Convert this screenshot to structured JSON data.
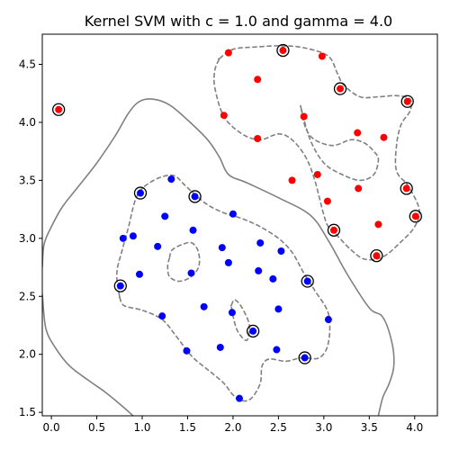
{
  "chart_data": {
    "type": "scatter",
    "title": "Kernel SVM with c = 1.0 and gamma = 4.0",
    "xlim": [
      -0.1,
      4.25
    ],
    "ylim": [
      1.47,
      4.76
    ],
    "xticks": [
      "0.0",
      "0.5",
      "1.0",
      "1.5",
      "2.0",
      "2.5",
      "3.0",
      "3.5",
      "4.0"
    ],
    "yticks": [
      "1.5",
      "2.0",
      "2.5",
      "3.0",
      "3.5",
      "4.0",
      "4.5"
    ],
    "grid": false,
    "series": [
      {
        "color": "#ff0000",
        "points": [
          [
            1.95,
            4.6
          ],
          [
            2.27,
            4.37
          ],
          [
            2.55,
            4.62
          ],
          [
            2.98,
            4.57
          ],
          [
            3.18,
            4.29
          ],
          [
            3.92,
            4.18
          ],
          [
            0.08,
            4.11
          ],
          [
            1.9,
            4.06
          ],
          [
            2.78,
            4.05
          ],
          [
            2.27,
            3.86
          ],
          [
            3.37,
            3.91
          ],
          [
            3.66,
            3.87
          ],
          [
            2.93,
            3.55
          ],
          [
            2.65,
            3.5
          ],
          [
            3.38,
            3.43
          ],
          [
            3.91,
            3.43
          ],
          [
            3.04,
            3.32
          ],
          [
            4.01,
            3.19
          ],
          [
            3.6,
            3.12
          ],
          [
            3.11,
            3.07
          ],
          [
            3.58,
            2.85
          ]
        ]
      },
      {
        "color": "#0000ff",
        "points": [
          [
            1.32,
            3.51
          ],
          [
            0.98,
            3.39
          ],
          [
            1.58,
            3.36
          ],
          [
            1.25,
            3.19
          ],
          [
            2.0,
            3.21
          ],
          [
            1.56,
            3.07
          ],
          [
            0.9,
            3.02
          ],
          [
            0.79,
            3.0
          ],
          [
            2.3,
            2.96
          ],
          [
            1.17,
            2.93
          ],
          [
            1.88,
            2.92
          ],
          [
            2.53,
            2.89
          ],
          [
            1.95,
            2.79
          ],
          [
            0.97,
            2.69
          ],
          [
            1.54,
            2.7
          ],
          [
            2.28,
            2.72
          ],
          [
            2.44,
            2.65
          ],
          [
            2.82,
            2.63
          ],
          [
            0.76,
            2.59
          ],
          [
            1.68,
            2.41
          ],
          [
            2.5,
            2.39
          ],
          [
            1.99,
            2.36
          ],
          [
            1.22,
            2.33
          ],
          [
            3.05,
            2.3
          ],
          [
            2.22,
            2.2
          ],
          [
            1.86,
            2.06
          ],
          [
            1.49,
            2.03
          ],
          [
            2.48,
            2.04
          ],
          [
            2.79,
            1.97
          ],
          [
            2.07,
            1.62
          ]
        ]
      }
    ],
    "support_vectors": [
      [
        2.55,
        4.62
      ],
      [
        3.18,
        4.29
      ],
      [
        3.92,
        4.18
      ],
      [
        0.08,
        4.11
      ],
      [
        3.91,
        3.43
      ],
      [
        4.01,
        3.19
      ],
      [
        3.11,
        3.07
      ],
      [
        3.58,
        2.85
      ],
      [
        0.98,
        3.39
      ],
      [
        1.58,
        3.36
      ],
      [
        2.82,
        2.63
      ],
      [
        0.76,
        2.59
      ],
      [
        2.22,
        2.2
      ],
      [
        2.79,
        1.97
      ]
    ],
    "decision_boundary": [
      [
        -0.1,
        2.75
      ],
      [
        -0.08,
        2.95
      ],
      [
        0.0,
        3.1
      ],
      [
        0.12,
        3.27
      ],
      [
        0.3,
        3.45
      ],
      [
        0.5,
        3.65
      ],
      [
        0.7,
        3.88
      ],
      [
        0.85,
        4.08
      ],
      [
        0.97,
        4.18
      ],
      [
        1.12,
        4.2
      ],
      [
        1.3,
        4.15
      ],
      [
        1.5,
        4.02
      ],
      [
        1.72,
        3.85
      ],
      [
        1.85,
        3.7
      ],
      [
        1.95,
        3.55
      ],
      [
        2.15,
        3.48
      ],
      [
        2.5,
        3.35
      ],
      [
        2.85,
        3.2
      ],
      [
        3.05,
        2.98
      ],
      [
        3.25,
        2.7
      ],
      [
        3.5,
        2.4
      ],
      [
        3.65,
        2.32
      ],
      [
        3.75,
        2.1
      ],
      [
        3.77,
        1.9
      ],
      [
        3.72,
        1.75
      ],
      [
        3.65,
        1.63
      ],
      [
        3.6,
        1.47
      ]
    ],
    "decision_boundary_2": [
      [
        -0.1,
        2.52
      ],
      [
        -0.06,
        2.22
      ],
      [
        0.05,
        2.05
      ],
      [
        0.2,
        1.9
      ],
      [
        0.4,
        1.78
      ],
      [
        0.6,
        1.67
      ],
      [
        0.8,
        1.54
      ],
      [
        0.9,
        1.47
      ]
    ],
    "margin_red": [
      [
        1.85,
        4.55
      ],
      [
        2.0,
        4.63
      ],
      [
        2.25,
        4.65
      ],
      [
        2.55,
        4.66
      ],
      [
        2.8,
        4.64
      ],
      [
        3.05,
        4.57
      ],
      [
        3.15,
        4.42
      ],
      [
        3.22,
        4.32
      ],
      [
        3.4,
        4.22
      ],
      [
        3.6,
        4.22
      ],
      [
        3.8,
        4.23
      ],
      [
        3.95,
        4.2
      ],
      [
        3.95,
        4.1
      ],
      [
        3.85,
        3.98
      ],
      [
        3.8,
        3.8
      ],
      [
        3.8,
        3.58
      ],
      [
        3.93,
        3.45
      ],
      [
        4.05,
        3.25
      ],
      [
        4.0,
        3.1
      ],
      [
        3.85,
        2.97
      ],
      [
        3.65,
        2.84
      ],
      [
        3.45,
        2.82
      ],
      [
        3.3,
        2.9
      ],
      [
        3.15,
        3.02
      ],
      [
        3.05,
        3.1
      ],
      [
        3.0,
        3.2
      ],
      [
        2.9,
        3.5
      ],
      [
        2.8,
        3.7
      ],
      [
        2.65,
        3.85
      ],
      [
        2.5,
        3.9
      ],
      [
        2.3,
        3.85
      ],
      [
        2.1,
        3.9
      ],
      [
        1.9,
        4.05
      ],
      [
        1.8,
        4.3
      ],
      [
        1.8,
        4.45
      ],
      [
        1.85,
        4.55
      ]
    ],
    "margin_red_inner": [
      [
        2.75,
        4.12
      ],
      [
        2.8,
        3.95
      ],
      [
        2.9,
        3.85
      ],
      [
        3.1,
        3.8
      ],
      [
        3.3,
        3.85
      ],
      [
        3.45,
        3.82
      ],
      [
        3.55,
        3.75
      ],
      [
        3.6,
        3.68
      ],
      [
        3.55,
        3.55
      ],
      [
        3.4,
        3.5
      ],
      [
        3.2,
        3.55
      ],
      [
        3.0,
        3.65
      ],
      [
        2.85,
        3.85
      ],
      [
        2.75,
        4.12
      ]
    ],
    "margin_blue": [
      [
        0.75,
        2.5
      ],
      [
        0.72,
        2.7
      ],
      [
        0.78,
        2.9
      ],
      [
        0.85,
        3.1
      ],
      [
        0.92,
        3.32
      ],
      [
        1.0,
        3.43
      ],
      [
        1.18,
        3.52
      ],
      [
        1.35,
        3.54
      ],
      [
        1.48,
        3.45
      ],
      [
        1.7,
        3.3
      ],
      [
        1.9,
        3.22
      ],
      [
        2.1,
        3.17
      ],
      [
        2.3,
        3.1
      ],
      [
        2.5,
        3.0
      ],
      [
        2.65,
        2.88
      ],
      [
        2.78,
        2.7
      ],
      [
        2.9,
        2.55
      ],
      [
        3.05,
        2.35
      ],
      [
        3.05,
        2.1
      ],
      [
        2.95,
        1.97
      ],
      [
        2.75,
        1.97
      ],
      [
        2.58,
        1.94
      ],
      [
        2.4,
        1.96
      ],
      [
        2.32,
        1.9
      ],
      [
        2.3,
        1.75
      ],
      [
        2.2,
        1.62
      ],
      [
        2.1,
        1.6
      ],
      [
        2.0,
        1.65
      ],
      [
        1.9,
        1.75
      ],
      [
        1.75,
        1.85
      ],
      [
        1.55,
        1.98
      ],
      [
        1.38,
        2.15
      ],
      [
        1.22,
        2.3
      ],
      [
        1.0,
        2.38
      ],
      [
        0.8,
        2.42
      ],
      [
        0.75,
        2.5
      ]
    ],
    "margin_blue_inner": [
      [
        1.3,
        2.83
      ],
      [
        1.33,
        2.9
      ],
      [
        1.45,
        2.95
      ],
      [
        1.55,
        2.96
      ],
      [
        1.62,
        2.88
      ],
      [
        1.62,
        2.75
      ],
      [
        1.52,
        2.66
      ],
      [
        1.4,
        2.63
      ],
      [
        1.3,
        2.67
      ],
      [
        1.28,
        2.76
      ],
      [
        1.3,
        2.83
      ]
    ],
    "margin_blue_notch": [
      [
        1.98,
        2.42
      ],
      [
        2.02,
        2.47
      ],
      [
        2.1,
        2.4
      ],
      [
        2.18,
        2.25
      ],
      [
        2.15,
        2.12
      ],
      [
        2.05,
        2.2
      ],
      [
        2.0,
        2.33
      ],
      [
        1.98,
        2.42
      ]
    ]
  }
}
